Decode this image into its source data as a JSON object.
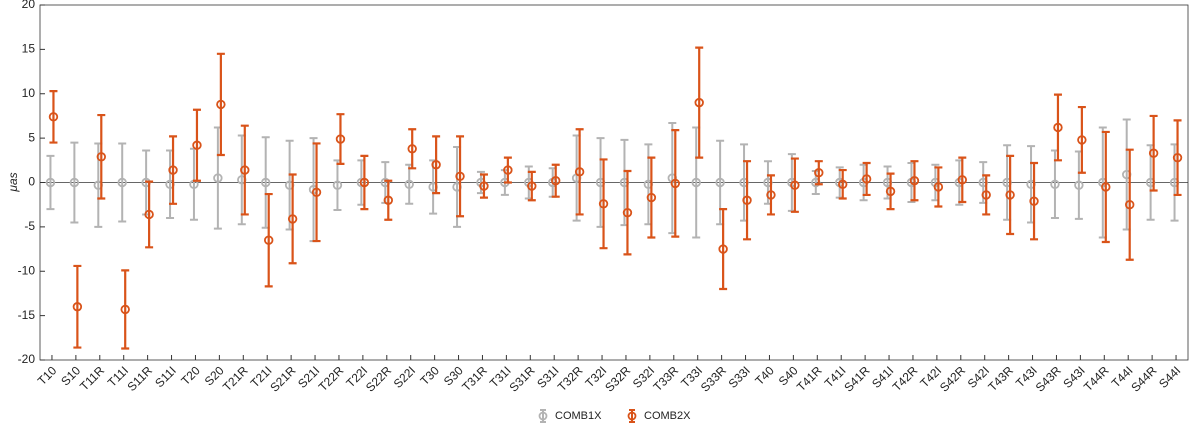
{
  "chart_data": {
    "type": "errorbar",
    "y_label": "μas",
    "categories": [
      "T10",
      "S10",
      "T11R",
      "T11I",
      "S11R",
      "S11I",
      "T20",
      "S20",
      "T21R",
      "T21I",
      "S21R",
      "S21I",
      "T22R",
      "T22I",
      "S22R",
      "S22I",
      "T30",
      "S30",
      "T31R",
      "T31I",
      "S31R",
      "S31I",
      "T32R",
      "T32I",
      "S32R",
      "S32I",
      "T33R",
      "T33I",
      "S33R",
      "S33I",
      "T40",
      "S40",
      "T41R",
      "T41I",
      "S41R",
      "S41I",
      "T42R",
      "T42I",
      "S42R",
      "S42I",
      "T43R",
      "T43I",
      "S43R",
      "S43I",
      "T44R",
      "T44I",
      "S44R",
      "S44I"
    ],
    "series": [
      {
        "name": "COMB1X",
        "color": "#b3b3b3",
        "values": [
          0,
          0,
          -0.3,
          0,
          0,
          -0.2,
          -0.2,
          0.5,
          0.3,
          0,
          -0.3,
          -0.8,
          -0.3,
          0,
          0,
          -0.2,
          -0.5,
          -0.5,
          0,
          0,
          0,
          0,
          0.5,
          0,
          0,
          -0.2,
          0.5,
          0,
          0,
          0,
          0,
          0,
          0,
          0,
          0,
          0,
          0,
          0,
          0,
          0,
          0,
          -0.2,
          -0.2,
          -0.3,
          0,
          0.9,
          0,
          0
        ],
        "errors": [
          3,
          4.5,
          4.7,
          4.4,
          3.6,
          3.8,
          4,
          5.7,
          5,
          5.1,
          5,
          5.8,
          2.8,
          2.5,
          2.3,
          2.2,
          3,
          4.5,
          1.2,
          1.4,
          1.8,
          1.6,
          4.8,
          5,
          4.8,
          4.5,
          6.2,
          6.2,
          4.7,
          4.3,
          2.4,
          3.2,
          1.3,
          1.7,
          2,
          1.8,
          2.2,
          2,
          2.5,
          2.3,
          4.2,
          4.3,
          3.8,
          3.8,
          6.2,
          6.2,
          4.2,
          4.3
        ]
      },
      {
        "name": "COMB2X",
        "color": "#d95319",
        "values": [
          7.4,
          -14,
          2.9,
          -14.3,
          -3.6,
          1.4,
          4.2,
          8.8,
          1.4,
          -6.5,
          -4.1,
          -1.1,
          4.9,
          0,
          -2,
          3.8,
          2,
          0.7,
          -0.4,
          1.4,
          -0.4,
          0.2,
          1.2,
          -2.4,
          -3.4,
          -1.7,
          -0.1,
          9,
          -7.5,
          -2,
          -1.4,
          -0.3,
          1.1,
          -0.2,
          0.4,
          -1,
          0.2,
          -0.5,
          0.3,
          -1.4,
          -1.4,
          -2.1,
          6.2,
          4.8,
          -0.5,
          -2.5,
          3.3,
          2.8
        ],
        "errors": [
          2.9,
          4.6,
          4.7,
          4.4,
          3.7,
          3.8,
          4,
          5.7,
          5,
          5.2,
          5,
          5.5,
          2.8,
          3,
          2.2,
          2.2,
          3.2,
          4.5,
          1.3,
          1.4,
          1.6,
          1.8,
          4.8,
          5,
          4.7,
          4.5,
          6,
          6.2,
          4.5,
          4.4,
          2.2,
          3,
          1.3,
          1.6,
          1.8,
          2,
          2.2,
          2.2,
          2.5,
          2.2,
          4.4,
          4.3,
          3.7,
          3.7,
          6.2,
          6.2,
          4.2,
          4.2
        ]
      }
    ],
    "ylim": [
      -20,
      20
    ],
    "yticks": [
      -20,
      -15,
      -10,
      -5,
      0,
      5,
      10,
      15,
      20
    ]
  }
}
